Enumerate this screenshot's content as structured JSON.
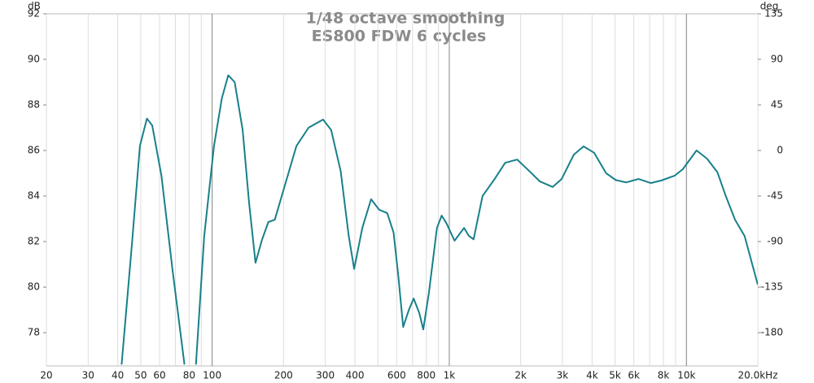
{
  "chart_data": {
    "type": "line",
    "title": "1/48 octave smoothing",
    "subtitle": "ES800 FDW 6 cycles",
    "ylabel": "dB",
    "y2label": "deg",
    "xscale": "log",
    "xgrid": true,
    "xlim": [
      20,
      20000
    ],
    "ylim": [
      76.54,
      92
    ],
    "y2lim": [
      -212.9,
      135
    ],
    "xticks": [
      20,
      30,
      40,
      50,
      60,
      80,
      100,
      200,
      300,
      400,
      600,
      800,
      {
        "value": 1000,
        "label": "1k"
      },
      {
        "value": 2000,
        "label": "2k"
      },
      {
        "value": 3000,
        "label": "3k"
      },
      {
        "value": 4000,
        "label": "4k"
      },
      {
        "value": 5000,
        "label": "5k"
      },
      {
        "value": 6000,
        "label": "6k"
      },
      {
        "value": 8000,
        "label": "8k"
      },
      {
        "value": 10000,
        "label": "10k"
      },
      {
        "value": 20000,
        "label": "20.0kHz"
      }
    ],
    "xminor": [
      70,
      90,
      500,
      700,
      900,
      7000,
      9000
    ],
    "xmajor": [
      100,
      1000,
      10000
    ],
    "yticks": [
      78,
      80,
      82,
      84,
      86,
      88,
      90,
      92
    ],
    "y2ticks": [
      -180,
      -135,
      -90,
      -45,
      0,
      45,
      90,
      135
    ],
    "x": [
      41.5,
      45.9,
      49.6,
      53.1,
      55.9,
      61.1,
      68.0,
      76.4,
      80,
      85.4,
      92.6,
      101.8,
      109.9,
      116.9,
      124.4,
      134.5,
      143.1,
      152.3,
      162.2,
      172.6,
      183.7,
      201.7,
      226.7,
      255.0,
      293.7,
      317.6,
      348.3,
      376.5,
      397.2,
      429.7,
      468.0,
      506.0,
      547.2,
      582.3,
      610.1,
      639.2,
      675.1,
      707.3,
      747.0,
      776.6,
      820.2,
      886.9,
      928.8,
      972.8,
      1051.8,
      1154.3,
      1209,
      1266,
      1381,
      1553,
      1720,
      1934,
      2174,
      2408,
      2730,
      2977,
      3353,
      3683,
      4078,
      4588,
      5041,
      5578,
      6280,
      7068,
      7824,
      8936,
      9659,
      11033,
      12209,
      13511,
      14605,
      16025,
      17583,
      20000
    ],
    "series": [
      {
        "name": "ES800 FDW 6 cycles",
        "color": "#17808a",
        "values": [
          76.6,
          81.9,
          86.2,
          87.4,
          87.1,
          84.9,
          80.8,
          76.6,
          null,
          76.6,
          82.25,
          86.2,
          88.3,
          89.3,
          89.0,
          86.9,
          83.7,
          81.07,
          82.07,
          82.86,
          82.96,
          84.4,
          86.2,
          87.0,
          87.36,
          86.9,
          85.1,
          82.25,
          80.8,
          82.6,
          83.86,
          83.4,
          83.25,
          82.4,
          80.46,
          78.25,
          79.0,
          79.5,
          78.86,
          78.14,
          79.75,
          82.6,
          83.14,
          82.8,
          82.04,
          82.6,
          82.25,
          82.1,
          84.0,
          84.75,
          85.46,
          85.6,
          85.1,
          84.64,
          84.4,
          84.75,
          85.82,
          86.18,
          85.9,
          85.0,
          84.7,
          84.6,
          84.75,
          84.57,
          84.68,
          84.9,
          85.18,
          86.0,
          85.64,
          85.04,
          84.04,
          82.96,
          82.25,
          80.1
        ]
      }
    ]
  }
}
